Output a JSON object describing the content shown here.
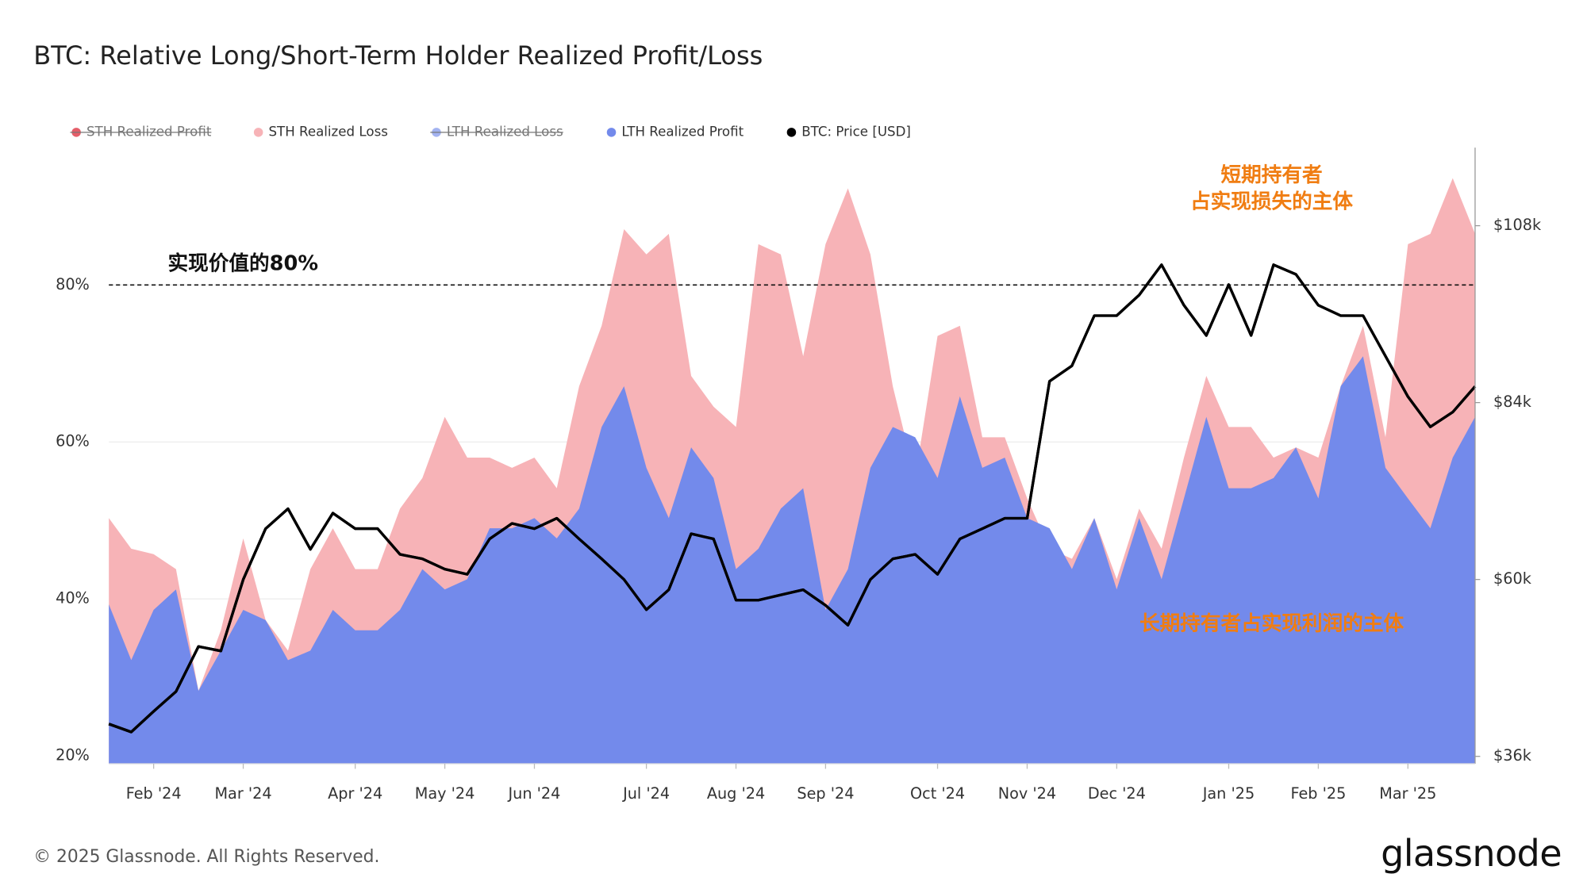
{
  "chart_data": {
    "type": "area",
    "title": "BTC: Relative Long/Short-Term Holder Realized Profit/Loss",
    "categories": [
      null,
      null,
      "Feb '24",
      null,
      null,
      null,
      "Mar '24",
      null,
      null,
      null,
      null,
      "Apr '24",
      null,
      null,
      null,
      "May '24",
      null,
      null,
      null,
      "Jun '24",
      null,
      null,
      null,
      null,
      "Jul '24",
      null,
      null,
      null,
      "Aug '24",
      null,
      null,
      null,
      "Sep '24",
      null,
      null,
      null,
      null,
      "Oct '24",
      null,
      null,
      null,
      "Nov '24",
      null,
      null,
      null,
      "Dec '24",
      null,
      null,
      null,
      null,
      "Jan '25",
      null,
      null,
      null,
      "Feb '25",
      null,
      null,
      null,
      "Mar '25",
      null,
      null,
      null
    ],
    "series": [
      {
        "name": "STH Realized Profit",
        "color": "#e0424f",
        "visible": false
      },
      {
        "name": "STH Realized Loss",
        "color": "#f7b3b7",
        "visible": true,
        "values": [
          50.3,
          46.4,
          45.7,
          43.8,
          28.3,
          36.0,
          47.7,
          37.3,
          33.4,
          43.8,
          49.0,
          43.8,
          43.8,
          51.5,
          55.4,
          63.2,
          58.0,
          58.0,
          56.7,
          58.0,
          54.1,
          67.1,
          74.8,
          87.1,
          83.9,
          86.5,
          68.4,
          64.5,
          61.9,
          85.2,
          83.9,
          70.9,
          85.2,
          92.3,
          83.9,
          67.1,
          55.4,
          73.5,
          74.8,
          60.6,
          60.6,
          52.8,
          46.4,
          45.1,
          50.3,
          42.5,
          51.5,
          46.4,
          58.0,
          68.4,
          61.9,
          61.9,
          58.0,
          59.3,
          58.0,
          67.1,
          74.8,
          60.6,
          85.2,
          86.5,
          93.6,
          86.5
        ]
      },
      {
        "name": "LTH Realized Loss",
        "color": "#93a6ee",
        "visible": false
      },
      {
        "name": "LTH Realized Profit",
        "color": "#738aeb",
        "visible": true,
        "values": [
          39.3,
          32.2,
          38.6,
          41.2,
          28.3,
          33.4,
          38.6,
          37.3,
          32.2,
          33.4,
          38.6,
          36.0,
          36.0,
          38.6,
          43.8,
          41.2,
          42.5,
          49.0,
          49.0,
          50.3,
          47.7,
          51.5,
          61.9,
          67.1,
          56.7,
          50.3,
          59.3,
          55.4,
          43.8,
          46.4,
          51.5,
          54.1,
          38.6,
          43.8,
          56.7,
          61.9,
          60.6,
          55.4,
          65.8,
          56.7,
          58.0,
          50.3,
          49.0,
          43.8,
          50.3,
          41.2,
          50.3,
          42.5,
          52.8,
          63.2,
          54.1,
          54.1,
          55.4,
          59.3,
          52.8,
          67.1,
          70.9,
          56.7,
          52.8,
          49.0,
          58.0,
          63.2
        ]
      },
      {
        "name": "BTC: Price [USD]",
        "color": "#000000",
        "visible": true,
        "axis": "y2",
        "values": [
          40400,
          39300,
          42100,
          44800,
          50900,
          50300,
          60000,
          66900,
          69600,
          64100,
          69000,
          66900,
          66900,
          63400,
          62800,
          61400,
          60700,
          65500,
          67600,
          66900,
          68300,
          65500,
          62800,
          60000,
          55900,
          58600,
          66200,
          65500,
          57200,
          57200,
          57900,
          58600,
          56500,
          53800,
          60000,
          62800,
          63400,
          60700,
          65500,
          66900,
          68300,
          68300,
          86900,
          89000,
          95800,
          95800,
          98600,
          102700,
          97200,
          93100,
          100000,
          93100,
          102700,
          101400,
          97200,
          95800,
          95800,
          90300,
          84800,
          80700,
          82700,
          86200
        ]
      }
    ],
    "ylim": [
      19,
      97.5
    ],
    "yticks": [
      {
        "value": 20,
        "label": "20%"
      },
      {
        "value": 40,
        "label": "40%"
      },
      {
        "value": 60,
        "label": "60%"
      },
      {
        "value": 80,
        "label": "80%"
      }
    ],
    "y2lim": [
      35000,
      118600
    ],
    "y2ticks": [
      {
        "value": 36000,
        "label": "$36k"
      },
      {
        "value": 60000,
        "label": "$60k"
      },
      {
        "value": 84000,
        "label": "$84k"
      },
      {
        "value": 108000,
        "label": "$108k"
      }
    ],
    "grid": true,
    "legend": "top-left",
    "reference_line": {
      "value": 80,
      "label": "实现价值的80%"
    },
    "annotations": [
      {
        "lines": [
          "短期持有者",
          "占实现损失的主体"
        ],
        "color": "#f07d12"
      },
      {
        "lines": [
          "长期持有者占实现利润的主体"
        ],
        "color": "#f07d12"
      }
    ],
    "footer": "© 2025 Glassnode. All Rights Reserved.",
    "brand": "glassnode"
  }
}
